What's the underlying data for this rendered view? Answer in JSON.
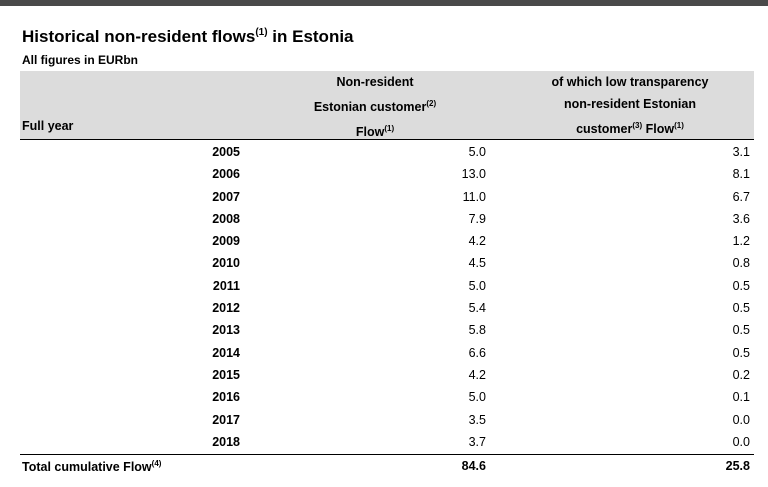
{
  "title": {
    "text": "Historical non-resident flows",
    "sup": "(1)",
    "suffix": " in Estonia"
  },
  "subtitle": "All figures in EURbn",
  "headers": {
    "full_year": "Full year",
    "col1": {
      "line1": "Non-resident",
      "line2": "Estonian customer",
      "line2_sup": "(2)",
      "line3": "Flow",
      "line3_sup": "(1)"
    },
    "col2": {
      "line1": "of which low transparency",
      "line2": "non-resident Estonian",
      "line3a": "customer",
      "line3a_sup": "(3)",
      "line3b": " Flow",
      "line3b_sup": "(1)"
    }
  },
  "rows": [
    {
      "year": "2005",
      "flow": "5.0",
      "low": "3.1"
    },
    {
      "year": "2006",
      "flow": "13.0",
      "low": "8.1"
    },
    {
      "year": "2007",
      "flow": "11.0",
      "low": "6.7"
    },
    {
      "year": "2008",
      "flow": "7.9",
      "low": "3.6"
    },
    {
      "year": "2009",
      "flow": "4.2",
      "low": "1.2"
    },
    {
      "year": "2010",
      "flow": "4.5",
      "low": "0.8"
    },
    {
      "year": "2011",
      "flow": "5.0",
      "low": "0.5"
    },
    {
      "year": "2012",
      "flow": "5.4",
      "low": "0.5"
    },
    {
      "year": "2013",
      "flow": "5.8",
      "low": "0.5"
    },
    {
      "year": "2014",
      "flow": "6.6",
      "low": "0.5"
    },
    {
      "year": "2015",
      "flow": "4.2",
      "low": "0.2"
    },
    {
      "year": "2016",
      "flow": "5.0",
      "low": "0.1"
    },
    {
      "year": "2017",
      "flow": "3.5",
      "low": "0.0"
    },
    {
      "year": "2018",
      "flow": "3.7",
      "low": "0.0"
    }
  ],
  "total": {
    "label": "Total cumulative Flow",
    "label_sup": "(4)",
    "flow": "84.6",
    "low": "25.8"
  }
}
